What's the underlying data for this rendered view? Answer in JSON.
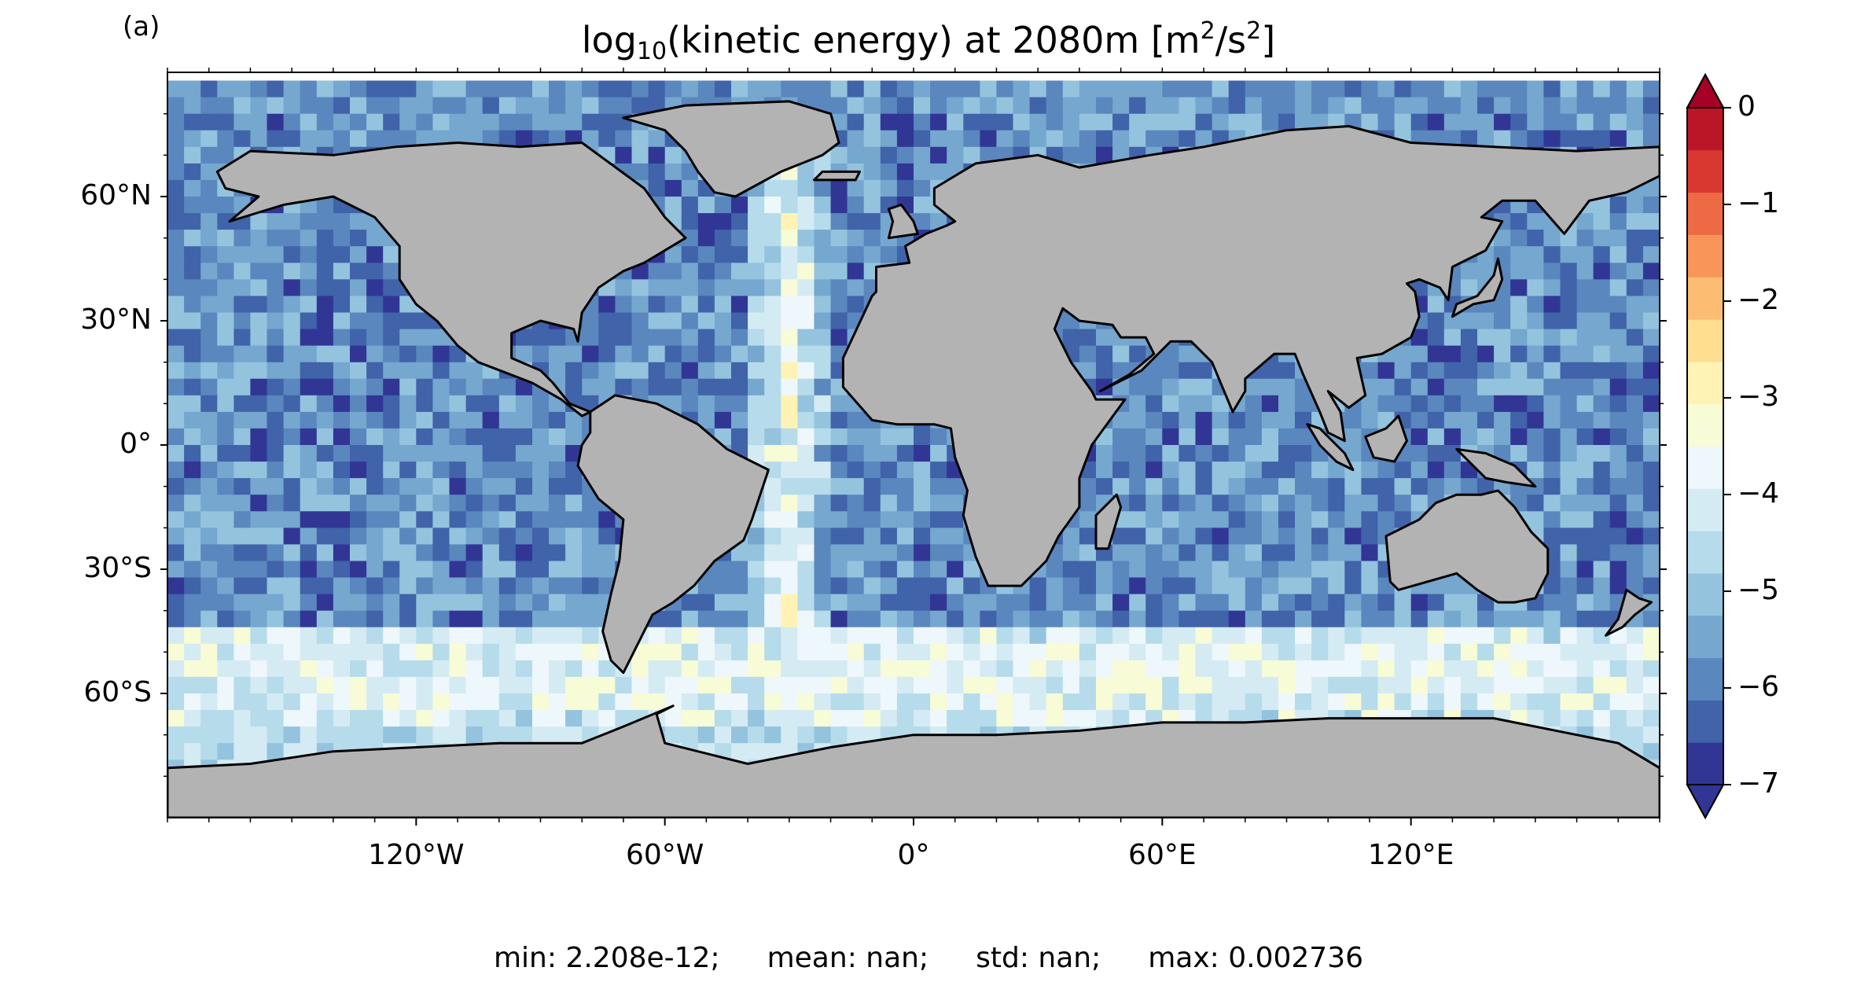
{
  "panel_label": "(a)",
  "title": {
    "prefix": "log",
    "prefix_sub": "10",
    "main": "(kinetic energy) at 2080m [m",
    "sup1": "2",
    "mid": "/s",
    "sup2": "2",
    "end": "]"
  },
  "map": {
    "projection": "plate-carree",
    "lon_range": [
      -180,
      180
    ],
    "lat_range": [
      -90,
      90
    ],
    "land_color": "#b3b3b3",
    "no_data_color": "#ffffff",
    "lat_ticks": [
      {
        "value": 60,
        "label": "60°N"
      },
      {
        "value": 30,
        "label": "30°N"
      },
      {
        "value": 0,
        "label": "0°"
      },
      {
        "value": -30,
        "label": "30°S"
      },
      {
        "value": -60,
        "label": "60°S"
      }
    ],
    "lon_ticks": [
      {
        "value": -120,
        "label": "120°W"
      },
      {
        "value": -60,
        "label": "60°W"
      },
      {
        "value": 0,
        "label": "0°"
      },
      {
        "value": 60,
        "label": "60°E"
      },
      {
        "value": 120,
        "label": "120°E"
      }
    ]
  },
  "colorbar": {
    "range": [
      -7,
      0
    ],
    "extend": "both",
    "levels": 16,
    "colors": [
      "#313695",
      "#4063a9",
      "#5a87bd",
      "#75a7cf",
      "#94c3de",
      "#b6dbeb",
      "#d4ebf3",
      "#eef7fb",
      "#f7fbd6",
      "#fef3b4",
      "#fedf8f",
      "#fcbc71",
      "#f99558",
      "#ee6a45",
      "#d93831",
      "#bb1628"
    ],
    "under_color": "#313695",
    "over_color": "#a50026",
    "ticks": [
      {
        "value": 0,
        "label": "0"
      },
      {
        "value": -1,
        "label": "−1"
      },
      {
        "value": -2,
        "label": "−2"
      },
      {
        "value": -3,
        "label": "−3"
      },
      {
        "value": -4,
        "label": "−4"
      },
      {
        "value": -5,
        "label": "−5"
      },
      {
        "value": -6,
        "label": "−6"
      },
      {
        "value": -7,
        "label": "−7"
      }
    ]
  },
  "stats": {
    "min": "min: 2.208e-12;",
    "mean": "mean: nan;",
    "std": "std: nan;",
    "max": "max: 0.002736"
  }
}
